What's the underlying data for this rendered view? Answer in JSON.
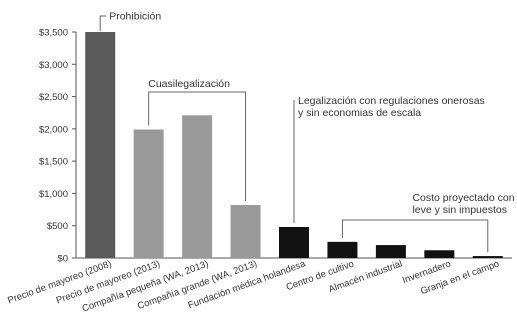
{
  "chart_data": {
    "type": "bar",
    "title": "",
    "xlabel": "",
    "ylabel": "",
    "ylim": [
      0,
      3500
    ],
    "yticks": [
      0,
      500,
      1000,
      1500,
      2000,
      2500,
      3000,
      3500
    ],
    "ytick_labels": [
      "$0",
      "$500",
      "$1,000",
      "$1,500",
      "$2,000",
      "$2,500",
      "$3,000",
      "$3,500"
    ],
    "grid": false,
    "categories": [
      "Precio de mayoreo (2008)",
      "Precio de mayoreo (2013)",
      "Compañía pequeña (WA, 2013)",
      "Compañía grande (WA, 2013)",
      "Fundación médica holandesa",
      "Centro de cultivo",
      "Almacén industrial",
      "Invernadero",
      "Granja en el campo"
    ],
    "values": [
      3500,
      1990,
      2210,
      820,
      480,
      250,
      200,
      120,
      30
    ],
    "bar_colors": [
      "#5a5a5a",
      "#9a9a9a",
      "#9a9a9a",
      "#9a9a9a",
      "#111111",
      "#111111",
      "#111111",
      "#111111",
      "#111111"
    ],
    "groups": [
      {
        "label": "Prohibición",
        "from": 0,
        "to": 0
      },
      {
        "label": "Cuasilegalización",
        "from": 1,
        "to": 3
      },
      {
        "label": "Legalización con regulaciones onerosas y sin economías de escala",
        "lines": [
          "Legalización con regulaciones onerosas",
          "y sin economias de escala"
        ],
        "from": 4,
        "to": 4
      },
      {
        "label": "Costo proyectado con regulación leve y sin impuestos",
        "lines": [
          "Costo proyectado con regulación",
          "leve y sin impuestos"
        ],
        "from": 5,
        "to": 8
      }
    ]
  }
}
